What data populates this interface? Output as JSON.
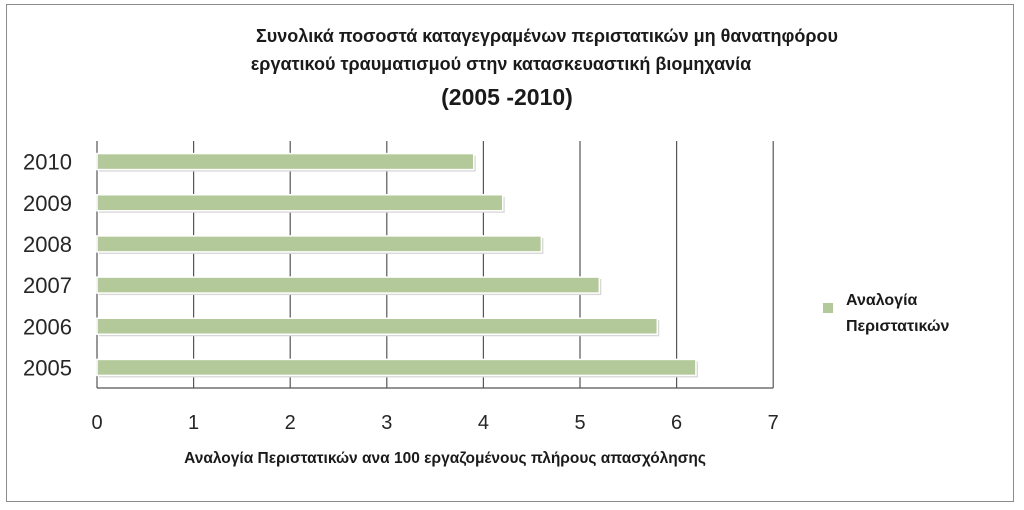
{
  "chart_data": {
    "type": "bar",
    "orientation": "horizontal",
    "title_lines": [
      "Συνολικά ποσοστά καταγεγραμένων περιστατικών μη θανατηφόρου",
      "εργατικού τραυματισμού στην κατασκευαστική βιομηχανία",
      "(2005 -2010)"
    ],
    "categories": [
      "2005",
      "2006",
      "2007",
      "2008",
      "2009",
      "2010"
    ],
    "series": [
      {
        "name": "Αναλογία Περιστατικών",
        "values": [
          6.2,
          5.8,
          5.2,
          4.6,
          4.2,
          3.9
        ]
      }
    ],
    "legend_lines": [
      "Αναλογία",
      "Περιστατικών"
    ],
    "xlabel": "Αναλογία Περιστατικών ανα 100 εργαζομένους πλήρους απασχόλησης",
    "ylabel": "",
    "xlim": [
      0,
      7
    ],
    "xticks": [
      "0",
      "1",
      "2",
      "3",
      "4",
      "5",
      "6",
      "7"
    ],
    "grid": true,
    "legend_position": "right",
    "bar_color": "#b3c99a"
  }
}
